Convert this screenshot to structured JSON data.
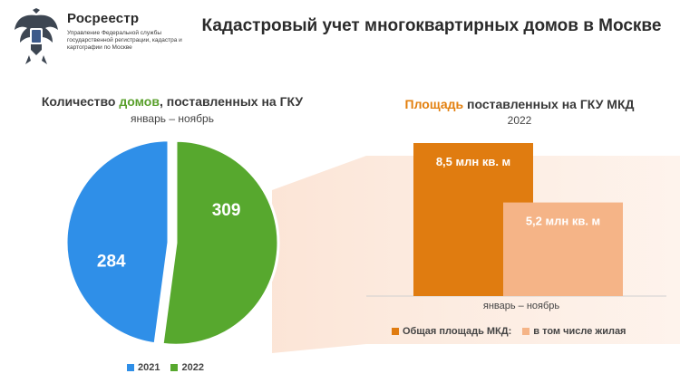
{
  "header": {
    "org_name": "Росреестр",
    "org_sub": "Управление Федеральной службы государственной регистрации, кадастра и картографии по Москве",
    "title": "Кадастровый учет многоквартирных домов в Москве",
    "logo_icon": "eagle-emblem-icon"
  },
  "chart_data": [
    {
      "type": "pie",
      "title_pre": "Количество ",
      "title_hl": "домов",
      "title_post": ", поставленных на ГКУ",
      "subtitle": "январь – ноябрь",
      "slices": [
        {
          "label": "2021",
          "value": 284,
          "color": "#2f8fe8"
        },
        {
          "label": "2022",
          "value": 309,
          "color": "#57a82e"
        }
      ],
      "legend": [
        "2021",
        "2022"
      ],
      "legend_position": "bottom"
    },
    {
      "type": "bar",
      "title_hl": "Площадь",
      "title_post": " поставленных на ГКУ МКД",
      "subtitle": "2022",
      "categories": [
        "январь – ноябрь"
      ],
      "series": [
        {
          "name": "Общая площадь МКД:",
          "values": [
            8.5
          ],
          "label": "8,5 млн кв. м",
          "color": "#e07c10"
        },
        {
          "name": "в том числе жилая",
          "values": [
            5.2
          ],
          "label": "5,2 млн кв. м",
          "color": "#f5b487"
        }
      ],
      "ylim": [
        0,
        8.5
      ],
      "legend_position": "bottom"
    }
  ]
}
